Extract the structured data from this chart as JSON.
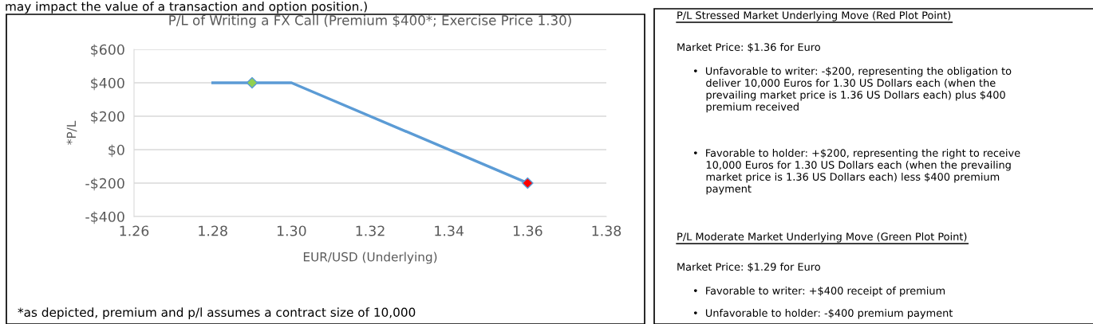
{
  "chart_data": [
    {
      "type": "line",
      "title": "P/L of Writing a FX Call (Premium $400*; Exercise Price 1.30)",
      "xlabel": "EUR/USD (Underlying)",
      "ylabel": "*P/L",
      "series": [
        {
          "type": "line",
          "color": "#5b9bd5",
          "x": [
            1.28,
            1.3,
            1.36
          ],
          "values": [
            400,
            400,
            -200
          ],
          "marker": "none"
        },
        {
          "type": "scatter",
          "color": "#92d050",
          "x": [
            1.29
          ],
          "values": [
            400
          ],
          "marker": "diamond"
        },
        {
          "type": "scatter",
          "color": "#ff0000",
          "x": [
            1.36
          ],
          "values": [
            -200
          ],
          "marker": "diamond"
        }
      ],
      "xlim": [
        1.26,
        1.38
      ],
      "xticks": [
        {
          "value": 1.26,
          "label": "1.26"
        },
        {
          "value": 1.28,
          "label": "1.28"
        },
        {
          "value": 1.3,
          "label": "1.30"
        },
        {
          "value": 1.32,
          "label": "1.32"
        },
        {
          "value": 1.34,
          "label": "1.34"
        },
        {
          "value": 1.36,
          "label": "1.36"
        },
        {
          "value": 1.38,
          "label": "1.38"
        }
      ],
      "ylim": [
        -400,
        600
      ],
      "yticks": [
        {
          "value": -400,
          "label": "-$400"
        },
        {
          "value": -200,
          "label": "-$200"
        },
        {
          "value": 0,
          "label": "$0"
        },
        {
          "value": 200,
          "label": "$200"
        },
        {
          "value": 400,
          "label": "$400"
        },
        {
          "value": 600,
          "label": "$600"
        }
      ],
      "grid": "y",
      "legend": false,
      "annotations": [
        "may impact the value of a transaction and option position.)",
        "*as depicted, premium and p/l assumes a contract size of 10,000"
      ]
    },
    {
      "type": "other",
      "annotations": [
        "P/L Stressed Market Underlying Move (Red Plot Point)",
        "Market Price: $1.36 for Euro",
        "•  Unfavorable to writer: -$200, representing the obligation to\n    deliver 10,000 Euros for 1.30 US Dollars each (when the\n    prevailing market price is 1.36 US Dollars each) plus $400\n    premium received",
        "•  Favorable to holder: +$200, representing the right to receive\n    10,000 Euros for 1.30 US Dollars each (when the prevailing\n    market price is 1.36 US Dollars each) less $400 premium\n    payment",
        "P/L Moderate Market Underlying Move (Green Plot Point)",
        "Market Price: $1.29 for Euro",
        "•  Favorable to writer: +$400 receipt of premium",
        "•  Unfavorable to holder: -$400 premium payment"
      ]
    }
  ]
}
